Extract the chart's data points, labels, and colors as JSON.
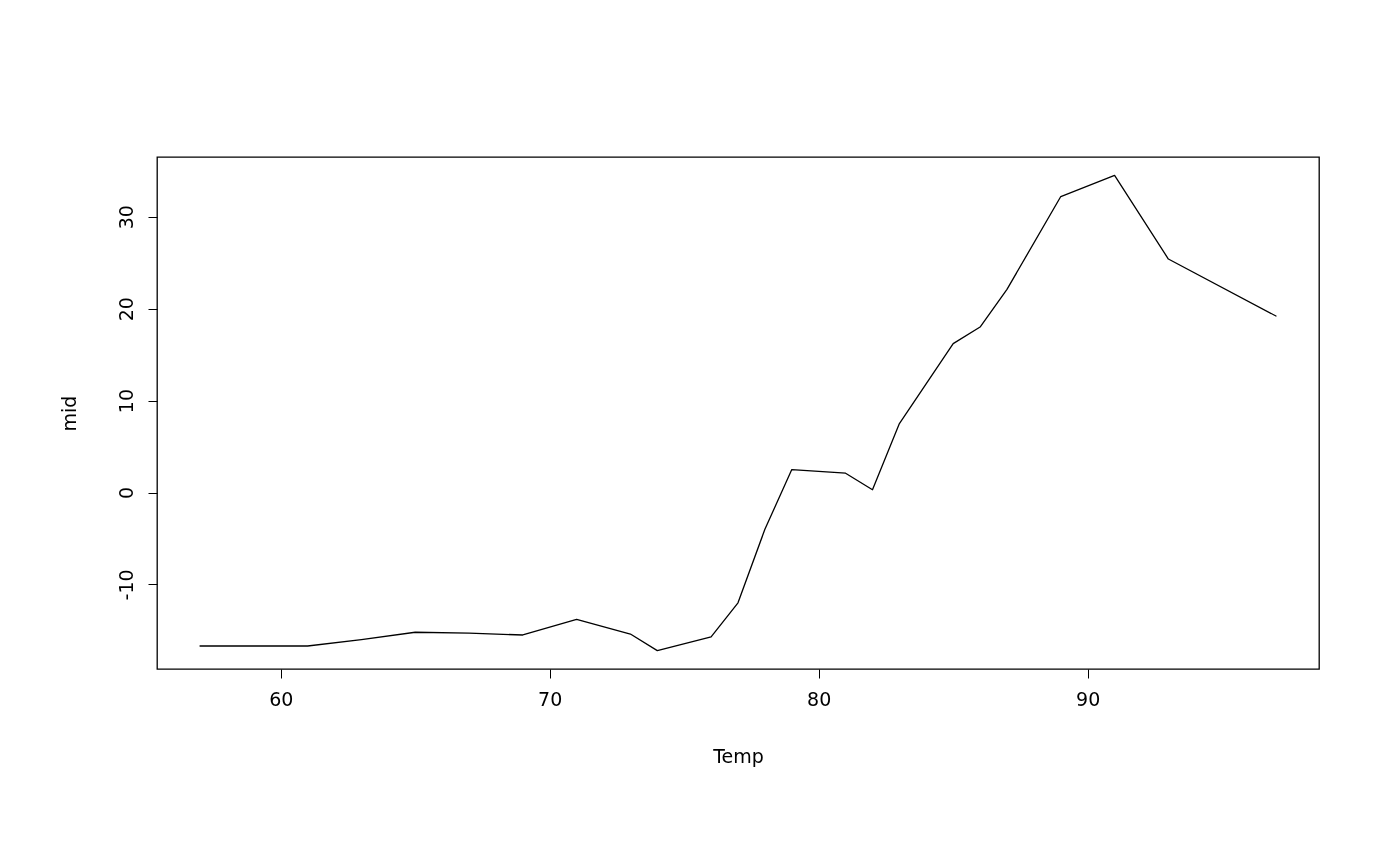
{
  "chart_data": {
    "type": "line",
    "xlabel": "Temp",
    "ylabel": "mid",
    "x": [
      57,
      61,
      63,
      65,
      67,
      69,
      71,
      73,
      74,
      76,
      77,
      78,
      79,
      81,
      82,
      83,
      85,
      86,
      87,
      89,
      91,
      93,
      97
    ],
    "series": [
      {
        "color": "#000000",
        "values": [
          -16.7,
          -16.7,
          -16.0,
          -15.2,
          -15.3,
          -15.5,
          -13.8,
          -15.4,
          -17.2,
          -15.7,
          -12.0,
          -4.0,
          2.5,
          2.1,
          0.3,
          7.5,
          16.2,
          18.0,
          22.1,
          32.2,
          34.5,
          25.4,
          19.2
        ]
      }
    ],
    "xlim": [
      55.4,
      98.6
    ],
    "ylim": [
      -19.2,
      36.5
    ],
    "xticks": [
      60,
      70,
      80,
      90
    ],
    "yticks": [
      -10,
      0,
      10,
      20,
      30
    ],
    "grid": false,
    "marker": "none",
    "line_style": "solid"
  }
}
